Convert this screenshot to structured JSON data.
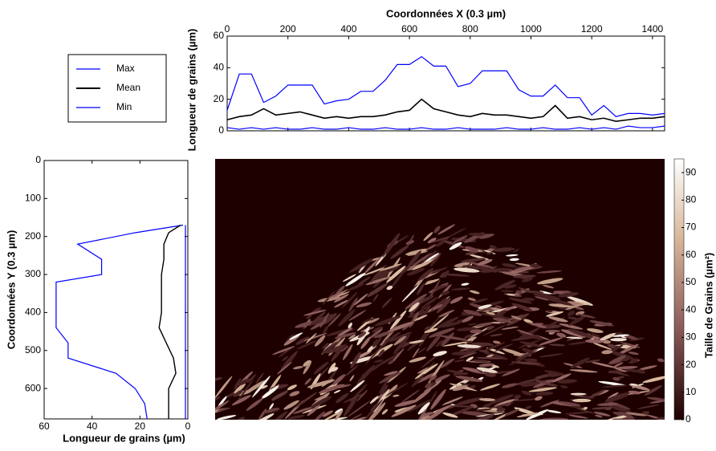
{
  "chart_data": [
    {
      "type": "line",
      "orientation": "horizontal",
      "xlabel": "Coordonnées X (0.3 µm)",
      "ylabel": "Longueur de grains (µm)",
      "xlim": [
        0,
        1440
      ],
      "xticks": [
        0,
        200,
        400,
        600,
        800,
        1000,
        1200,
        1400
      ],
      "ylim": [
        0,
        60
      ],
      "yticks": [
        0,
        20,
        40,
        60
      ],
      "legend": "outside-left",
      "x": [
        0,
        40,
        80,
        120,
        160,
        200,
        240,
        280,
        320,
        360,
        400,
        440,
        480,
        520,
        560,
        600,
        640,
        680,
        720,
        760,
        800,
        840,
        880,
        920,
        960,
        1000,
        1040,
        1080,
        1120,
        1160,
        1200,
        1240,
        1280,
        1320,
        1360,
        1400,
        1440
      ],
      "series": [
        {
          "name": "Max",
          "color": "#0000ff",
          "values": [
            13,
            36,
            36,
            18,
            22,
            29,
            29,
            29,
            17,
            19,
            20,
            25,
            25,
            32,
            42,
            42,
            47,
            41,
            41,
            28,
            30,
            38,
            38,
            38,
            26,
            22,
            22,
            29,
            21,
            21,
            10,
            16,
            9,
            11,
            11,
            10,
            11
          ]
        },
        {
          "name": "Mean",
          "color": "#000000",
          "values": [
            7,
            9,
            10,
            14,
            10,
            11,
            12,
            10,
            8,
            9,
            8,
            9,
            9,
            10,
            12,
            13,
            20,
            14,
            12,
            10,
            9,
            11,
            10,
            10,
            9,
            8,
            9,
            16,
            8,
            9,
            7,
            8,
            6,
            7,
            8,
            8,
            9
          ]
        },
        {
          "name": "Min",
          "color": "#0000ff",
          "values": [
            2,
            1,
            2,
            1,
            2,
            1,
            1,
            2,
            1,
            1,
            2,
            1,
            1,
            2,
            1,
            1,
            2,
            1,
            1,
            2,
            1,
            1,
            1,
            2,
            1,
            1,
            2,
            1,
            1,
            2,
            1,
            2,
            1,
            3,
            2,
            2,
            3
          ]
        }
      ]
    },
    {
      "type": "line",
      "orientation": "vertical",
      "xlabel": "Longueur de grains (µm)",
      "ylabel": "Coordonnées Y (0.3 µm)",
      "xlim": [
        60,
        0
      ],
      "xticks": [
        60,
        40,
        20,
        0
      ],
      "ylim": [
        0,
        680
      ],
      "yticks": [
        0,
        100,
        200,
        300,
        400,
        500,
        600
      ],
      "y": [
        170,
        190,
        220,
        260,
        300,
        320,
        360,
        400,
        440,
        480,
        520,
        560,
        600,
        640,
        680
      ],
      "series": [
        {
          "name": "Max",
          "color": "#0000ff",
          "values": [
            2,
            22,
            46,
            36,
            36,
            55,
            55,
            55,
            55,
            50,
            50,
            30,
            22,
            18,
            17
          ]
        },
        {
          "name": "Mean",
          "color": "#000000",
          "values": [
            3,
            8,
            10,
            10,
            11,
            11,
            11,
            11,
            12,
            9,
            6,
            5,
            8,
            8,
            8
          ]
        },
        {
          "name": "Min",
          "color": "#0000ff",
          "values": [
            1,
            1,
            1,
            1,
            1,
            1,
            1,
            1,
            1,
            1,
            1,
            1,
            1,
            1,
            1
          ]
        }
      ]
    },
    {
      "type": "heatmap",
      "colormap": "pink",
      "colorbar_label": "Taille de Grains (µm²)",
      "zlim": [
        0,
        95
      ],
      "zticks": [
        0,
        10,
        20,
        30,
        40,
        50,
        60,
        70,
        80,
        90
      ]
    }
  ]
}
